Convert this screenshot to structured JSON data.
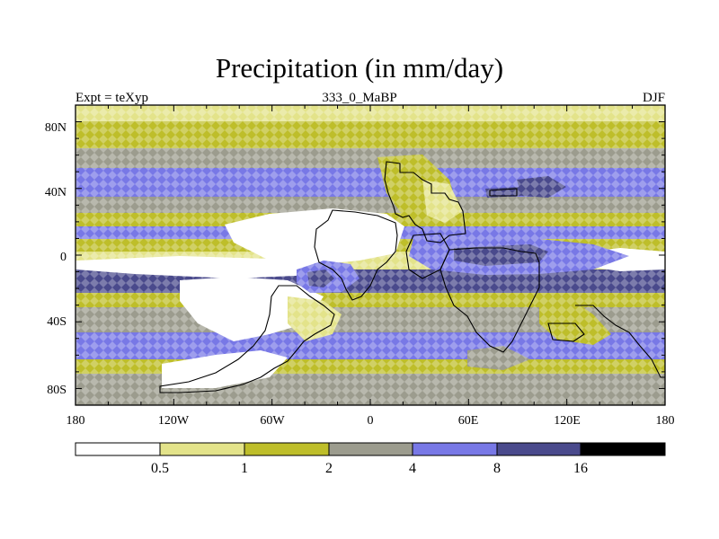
{
  "title": "Precipitation (in mm/day)",
  "subtitles": {
    "left": "Expt = teXyp",
    "center": "333_0_MaBP",
    "right": "DJF"
  },
  "axes": {
    "x_ticks": [
      "180",
      "120W",
      "60W",
      "0",
      "60E",
      "120E",
      "180"
    ],
    "y_ticks": [
      "80N",
      "40N",
      "0",
      "40S",
      "80S"
    ],
    "lon_range": [
      -180,
      180
    ],
    "lat_range": [
      -90,
      90
    ]
  },
  "colorbar": {
    "labels": [
      "0.5",
      "1",
      "2",
      "4",
      "8",
      "16"
    ],
    "colors": [
      "#ffffff",
      "#e3e38a",
      "#bebe2a",
      "#9c9c8e",
      "#7878e6",
      "#4a4a8c",
      "#000000"
    ]
  }
}
